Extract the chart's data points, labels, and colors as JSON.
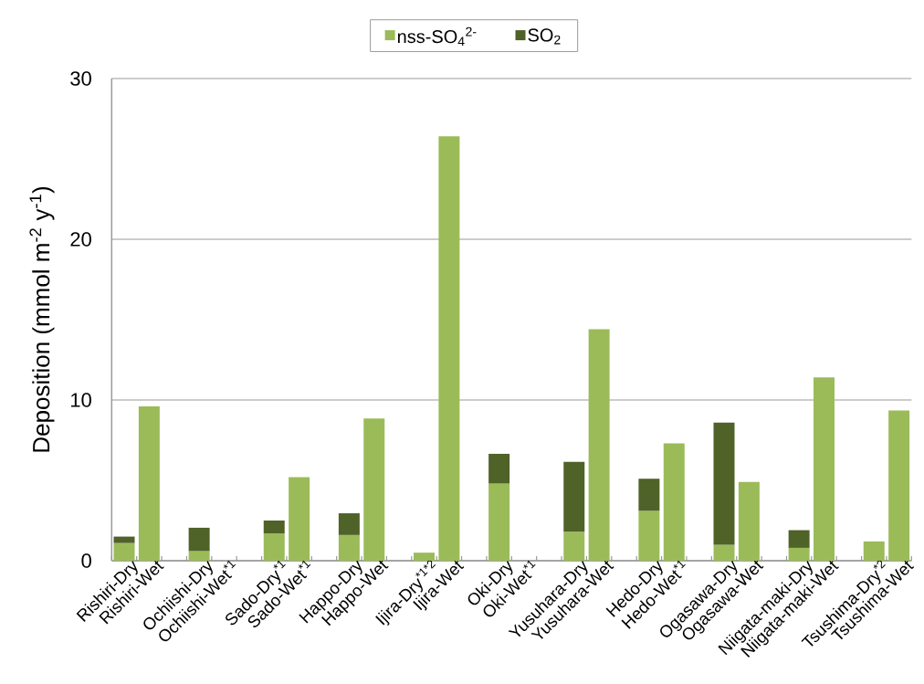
{
  "chart_data": {
    "type": "bar",
    "stacked": true,
    "ylabel": "Deposition (mmol m$^{-2}$ y$^{-1}$)",
    "categories": [
      "Rishiri-Dry",
      "Rishiri-Wet",
      null,
      "Ochiishi-Dry",
      "Ochiishi-Wet$^{*1}$",
      null,
      "Sado-Dry$^{*1}$",
      "Sado-Wet$^{*1}$",
      null,
      "Happo-Dry",
      "Happo-Wet",
      null,
      "Ijira-Dry$^{*1*2}$",
      "Ijira-Wet",
      null,
      "Oki-Dry",
      "Oki-Wet$^{*1}$",
      null,
      "Yusuhara-Dry",
      "Yusuhara-Wet",
      null,
      "Hedo-Dry",
      "Hedo-Wet$^{*1}$",
      null,
      "Ogasawa-Dry",
      "Ogasawa-Wet",
      null,
      "Niigata-maki-Dry",
      "Niigata-maki-Wet",
      null,
      "Tsushima-Dry$^{*2}$",
      "Tsushima-Wet"
    ],
    "series": [
      {
        "name": "nss-SO$_{4}$$^{2-}$",
        "color": "#9bbb59",
        "values": [
          1.1,
          9.6,
          null,
          0.6,
          null,
          null,
          1.7,
          5.2,
          null,
          1.6,
          8.85,
          null,
          0.5,
          26.4,
          null,
          4.8,
          null,
          null,
          1.8,
          14.4,
          null,
          3.1,
          7.3,
          null,
          1.0,
          4.9,
          null,
          0.8,
          11.4,
          null,
          1.2,
          9.35
        ]
      },
      {
        "name": "SO$_{2}$",
        "color": "#4f6228",
        "values": [
          0.4,
          null,
          null,
          1.45,
          null,
          null,
          0.8,
          null,
          null,
          1.35,
          null,
          null,
          null,
          null,
          null,
          1.85,
          null,
          null,
          4.35,
          null,
          null,
          2.0,
          null,
          null,
          7.6,
          null,
          null,
          1.1,
          null,
          null,
          null,
          null
        ]
      }
    ],
    "ylim": [
      0,
      30
    ],
    "yticks": [
      0,
      10,
      20,
      30
    ],
    "grid": "y",
    "legend": "top"
  }
}
